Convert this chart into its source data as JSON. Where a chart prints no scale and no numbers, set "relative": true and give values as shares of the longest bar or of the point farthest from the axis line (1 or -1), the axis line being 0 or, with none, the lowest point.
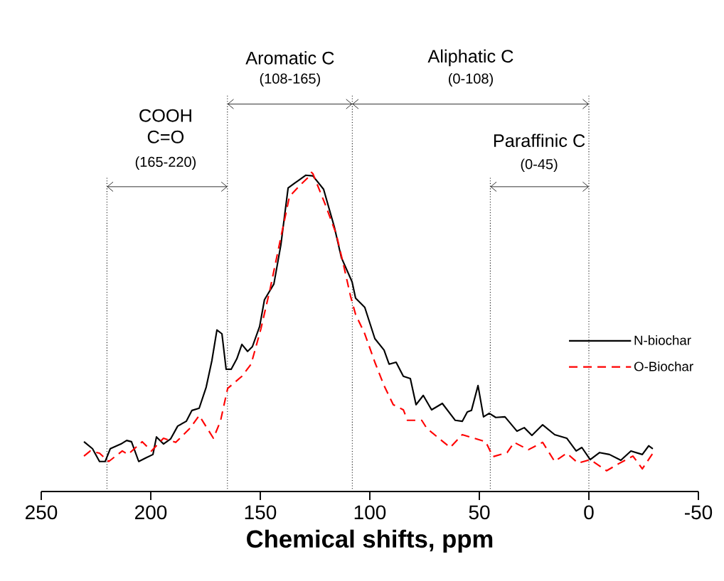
{
  "chart_data": {
    "type": "line",
    "relative": true,
    "xlabel": "Chemical shifts, ppm",
    "xlim": [
      250,
      -50
    ],
    "xticks": [
      250,
      200,
      150,
      100,
      50,
      0,
      -50
    ],
    "legend": "right",
    "series": [
      {
        "name": "N-biochar",
        "color": "#000000",
        "line_style": "solid",
        "x": [
          230.5,
          226.6,
          223.4,
          220.8,
          218.5,
          213.6,
          211,
          208.8,
          205.5,
          202.3,
          199,
          197.4,
          194.2,
          190.9,
          187.7,
          183.8,
          181.2,
          177.9,
          174.7,
          172.1,
          169.8,
          167.5,
          165.6,
          163.3,
          160.7,
          158.4,
          155.8,
          153.6,
          150.3,
          148.1,
          143.8,
          140.6,
          137.3,
          134.1,
          129.2,
          126,
          121.1,
          116.2,
          113,
          108.1,
          106.5,
          102.3,
          97.7,
          93.5,
          91.2,
          88,
          84.7,
          81.5,
          78.9,
          75.6,
          71.8,
          66.9,
          61,
          57.8,
          55.5,
          53.6,
          50.6,
          48.1,
          45.5,
          42.5,
          38.3,
          32.8,
          29.5,
          26,
          21.1,
          15.6,
          10.1,
          5.8,
          3.2,
          -0.6,
          -4.9,
          -9.4,
          -14.6,
          -19.2,
          -24.4,
          -27.3,
          -29.2
        ],
        "values": [
          0.156,
          0.134,
          0.094,
          0.094,
          0.134,
          0.149,
          0.16,
          0.156,
          0.094,
          0.105,
          0.116,
          0.171,
          0.149,
          0.165,
          0.205,
          0.22,
          0.254,
          0.261,
          0.327,
          0.41,
          0.506,
          0.494,
          0.383,
          0.383,
          0.416,
          0.461,
          0.439,
          0.454,
          0.517,
          0.601,
          0.65,
          0.773,
          0.951,
          0.967,
          0.991,
          0.989,
          0.947,
          0.829,
          0.733,
          0.657,
          0.606,
          0.577,
          0.479,
          0.443,
          0.399,
          0.405,
          0.361,
          0.354,
          0.272,
          0.301,
          0.256,
          0.276,
          0.223,
          0.22,
          0.249,
          0.254,
          0.332,
          0.234,
          0.245,
          0.232,
          0.234,
          0.189,
          0.2,
          0.176,
          0.209,
          0.178,
          0.167,
          0.127,
          0.138,
          0.1,
          0.122,
          0.116,
          0.098,
          0.127,
          0.116,
          0.143,
          0.134
        ]
      },
      {
        "name": "O-Biochar",
        "color": "#ff0000",
        "line_style": "dashed",
        "x": [
          230.5,
          227.6,
          223.4,
          219.2,
          213,
          210.4,
          203.9,
          199.7,
          194.2,
          188.6,
          182.1,
          177.9,
          171.4,
          168.2,
          164.9,
          158.4,
          154.2,
          149.7,
          145.5,
          141.2,
          136.7,
          132.5,
          128.2,
          126.6,
          126,
          120.5,
          115.3,
          112,
          108.8,
          106.5,
          102.3,
          97.7,
          93.5,
          89.3,
          84.7,
          82.8,
          76.3,
          74,
          68.5,
          63.3,
          57.8,
          52.3,
          47.1,
          43.8,
          37.3,
          34.1,
          27.6,
          21.1,
          15.6,
          10.1,
          4.9,
          -0.6,
          -8.1,
          -13.6,
          -20.1,
          -24.4,
          -29.2
        ],
        "values": [
          0.111,
          0.127,
          0.12,
          0.094,
          0.127,
          0.116,
          0.156,
          0.127,
          0.167,
          0.154,
          0.198,
          0.238,
          0.167,
          0.22,
          0.323,
          0.361,
          0.399,
          0.51,
          0.635,
          0.777,
          0.924,
          0.955,
          0.984,
          1,
          0.996,
          0.902,
          0.806,
          0.71,
          0.612,
          0.555,
          0.494,
          0.405,
          0.332,
          0.272,
          0.256,
          0.223,
          0.223,
          0.198,
          0.167,
          0.138,
          0.178,
          0.167,
          0.156,
          0.109,
          0.122,
          0.154,
          0.131,
          0.154,
          0.094,
          0.12,
          0.089,
          0.1,
          0.065,
          0.087,
          0.111,
          0.071,
          0.12
        ]
      }
    ],
    "ref_lines": [
      {
        "axis": "x",
        "value": 220,
        "line_style": "dotted"
      },
      {
        "axis": "x",
        "value": 165,
        "line_style": "dotted"
      },
      {
        "axis": "x",
        "value": 108,
        "line_style": "dotted"
      },
      {
        "axis": "x",
        "value": 45,
        "line_style": "dotted"
      },
      {
        "axis": "x",
        "value": 0,
        "line_style": "dotted"
      }
    ],
    "annotations": [
      "COOH",
      "C=O",
      "(165-220)",
      "Aromatic C",
      "(108-165)",
      "Aliphatic C",
      "(0-108)",
      "Paraffinic C",
      "(0-45)"
    ]
  }
}
